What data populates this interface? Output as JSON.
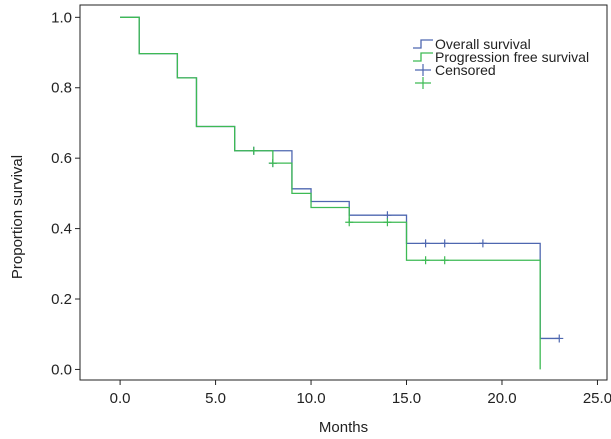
{
  "chart_data": {
    "type": "line",
    "xlabel": "Months",
    "ylabel": "Proportion survival",
    "xlim": [
      -2.1,
      25.5
    ],
    "ylim": [
      -0.03,
      1.035
    ],
    "x_ticks": [
      0,
      5,
      10,
      15,
      20,
      25
    ],
    "x_tick_labels": [
      "0.0",
      "5.0",
      "10.0",
      "15.0",
      "20.0",
      "25.0"
    ],
    "y_ticks": [
      0,
      0.2,
      0.4,
      0.6,
      0.8,
      1.0
    ],
    "y_tick_labels": [
      "0.0",
      "0.2",
      "0.4",
      "0.6",
      "0.8",
      "1.0"
    ],
    "legend_position": "top-right",
    "legend": [
      {
        "label": "Overall survival",
        "symbol": "step",
        "color": "#4e67b0"
      },
      {
        "label": "Progression free survival",
        "symbol": "step",
        "color": "#3dba54"
      },
      {
        "label": "Censored",
        "symbol": "plus",
        "color": "#4e67b0"
      },
      {
        "label": "",
        "symbol": "plus",
        "color": "#3dba54"
      }
    ],
    "series": [
      {
        "name": "Overall survival",
        "color": "#4e67b0",
        "steps": [
          [
            0,
            1.0
          ],
          [
            1,
            0.897
          ],
          [
            3,
            0.828
          ],
          [
            4,
            0.69
          ],
          [
            6,
            0.621
          ],
          [
            9,
            0.513
          ],
          [
            10,
            0.477
          ],
          [
            12,
            0.438
          ],
          [
            15,
            0.358
          ],
          [
            22,
            0.088
          ],
          [
            23,
            0.088
          ]
        ],
        "censored": [
          [
            7,
            0.621
          ],
          [
            8,
            0.586
          ],
          [
            14,
            0.438
          ],
          [
            16,
            0.358
          ],
          [
            17,
            0.358
          ],
          [
            19,
            0.358
          ],
          [
            23,
            0.088
          ]
        ]
      },
      {
        "name": "Progression free survival",
        "color": "#3dba54",
        "steps": [
          [
            0,
            1.0
          ],
          [
            1,
            0.897
          ],
          [
            3,
            0.828
          ],
          [
            4,
            0.69
          ],
          [
            6,
            0.621
          ],
          [
            8,
            0.586
          ],
          [
            9,
            0.5
          ],
          [
            10,
            0.46
          ],
          [
            12,
            0.418
          ],
          [
            15,
            0.31
          ],
          [
            22,
            0.0
          ]
        ],
        "censored": [
          [
            7,
            0.621
          ],
          [
            8,
            0.586
          ],
          [
            12,
            0.418
          ],
          [
            14,
            0.418
          ],
          [
            16,
            0.31
          ],
          [
            17,
            0.31
          ]
        ]
      }
    ]
  }
}
